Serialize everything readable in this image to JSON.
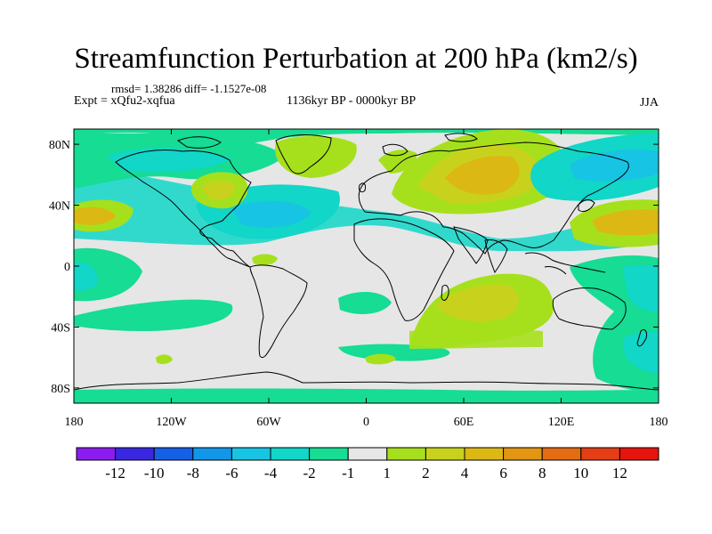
{
  "title": "Streamfunction Perturbation at 200 hPa (km2/s)",
  "stats": "rmsd= 1.38286 diff= -1.1527e-08",
  "experiment": "Expt = xQfu2-xqfua",
  "period": "1136kyr BP - 0000kyr BP",
  "season": "JJA",
  "map": {
    "projection": "cylindrical-equidistant",
    "lon_range": [
      -180,
      180
    ],
    "lat_range": [
      -90,
      90
    ],
    "y_ticks": [
      {
        "lat": 80,
        "label": "80N"
      },
      {
        "lat": 40,
        "label": "40N"
      },
      {
        "lat": 0,
        "label": "0"
      },
      {
        "lat": -40,
        "label": "40S"
      },
      {
        "lat": -80,
        "label": "80S"
      }
    ],
    "x_ticks": [
      {
        "lon": -180,
        "label": "180"
      },
      {
        "lon": -120,
        "label": "120W"
      },
      {
        "lon": -60,
        "label": "60W"
      },
      {
        "lon": 0,
        "label": "0"
      },
      {
        "lon": 60,
        "label": "60E"
      },
      {
        "lon": 120,
        "label": "120E"
      },
      {
        "lon": 180,
        "label": "180"
      }
    ],
    "background_color": "#e6e6e6",
    "coast_color": "#000000"
  },
  "colorbar": {
    "colors": [
      "#8a1cf0",
      "#3a28e0",
      "#1560e6",
      "#1296e8",
      "#17c4e4",
      "#11d6c8",
      "#16dc94",
      "#e6e6e6",
      "#a6e01c",
      "#c8d21c",
      "#dcb814",
      "#e29612",
      "#e46c12",
      "#e43e16",
      "#e4140e"
    ],
    "labels": [
      "-12",
      "-10",
      "-8",
      "-6",
      "-4",
      "-2",
      "-1",
      "1",
      "2",
      "4",
      "6",
      "8",
      "10",
      "12"
    ]
  },
  "chart_data": {
    "type": "filled-contour-map",
    "variable": "Streamfunction Perturbation at 200 hPa",
    "units": "km2/s",
    "levels": [
      -12,
      -10,
      -8,
      -6,
      -4,
      -2,
      -1,
      1,
      2,
      4,
      6,
      8,
      10,
      12
    ],
    "anomalies": [
      {
        "lon": 60,
        "lat": 55,
        "value": 6
      },
      {
        "lon": 150,
        "lat": 38,
        "value": 5
      },
      {
        "lon": -175,
        "lat": 35,
        "value": 5
      },
      {
        "lon": -78,
        "lat": 50,
        "value": 4
      },
      {
        "lon": -38,
        "lat": 68,
        "value": 3
      },
      {
        "lon": 25,
        "lat": 75,
        "value": 3
      },
      {
        "lon": 62,
        "lat": -22,
        "value": 3
      },
      {
        "lon": -58,
        "lat": 35,
        "value": -3
      },
      {
        "lon": 108,
        "lat": 65,
        "value": -3
      },
      {
        "lon": 178,
        "lat": -30,
        "value": -3
      },
      {
        "lon": -55,
        "lat": 78,
        "value": -2
      },
      {
        "lon": -178,
        "lat": -10,
        "value": -2
      },
      {
        "lon": -150,
        "lat": 10,
        "value": -1
      },
      {
        "lon": -110,
        "lat": -30,
        "value": -1
      },
      {
        "lon": -70,
        "lat": 5,
        "value": 2
      },
      {
        "lon": 10,
        "lat": -75,
        "value": 2
      },
      {
        "lon": -130,
        "lat": -75,
        "value": 2
      }
    ]
  }
}
